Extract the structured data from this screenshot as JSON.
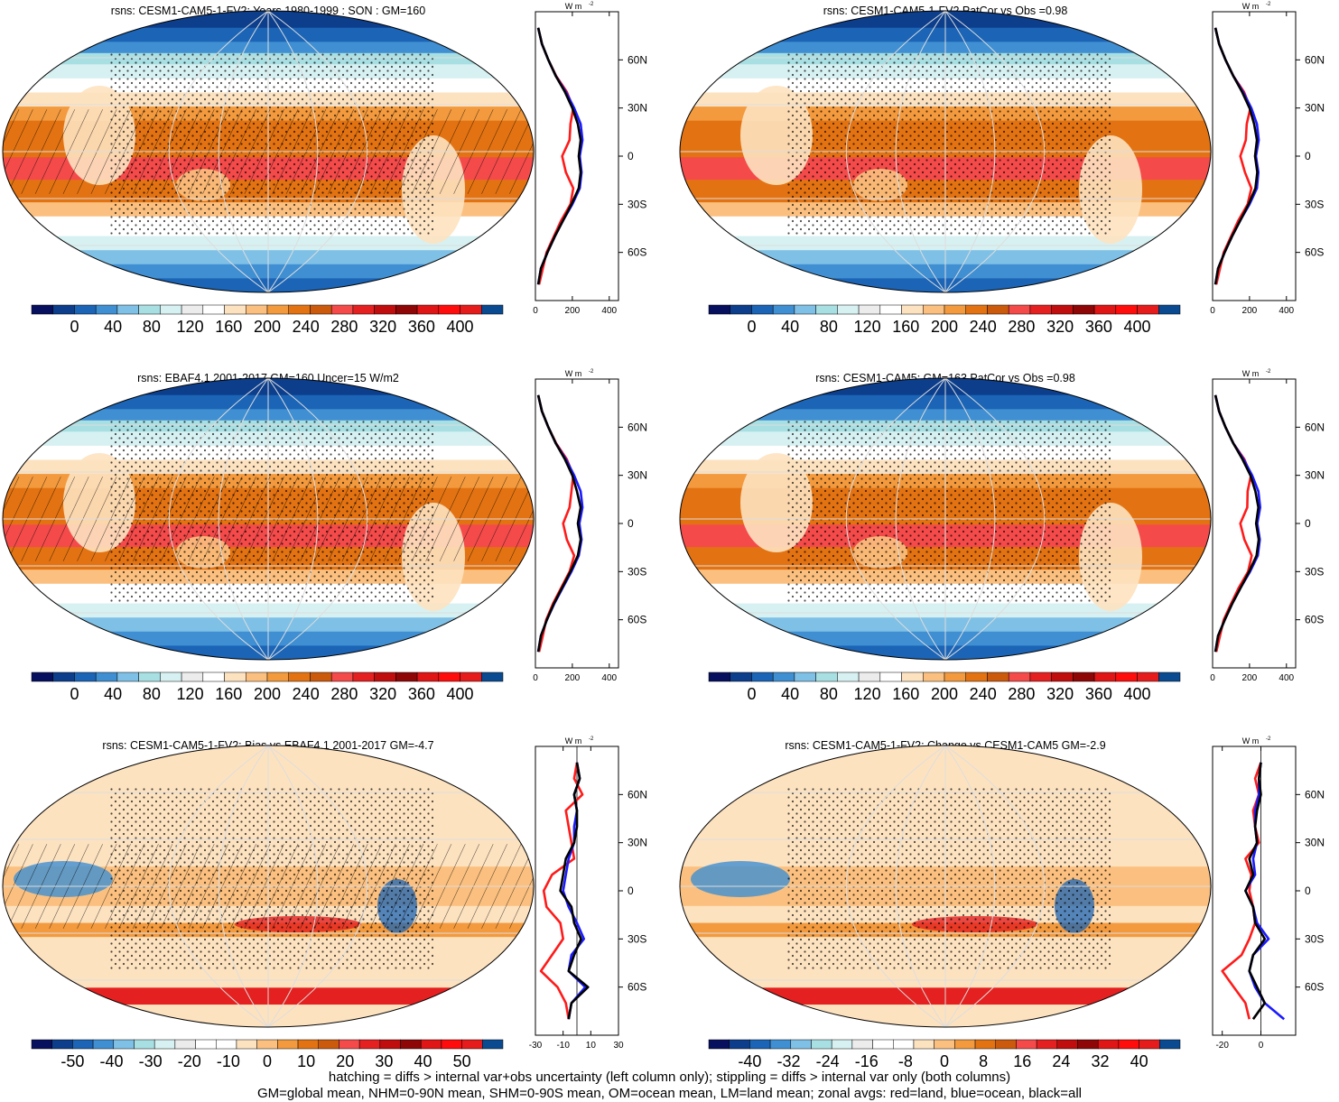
{
  "figure": {
    "footer_line1": "hatching = diffs > internal var+obs uncertainty (left column only); stippling = diffs > internal var only (both columns)",
    "footer_line2": "GM=global mean, NHM=0-90N mean, SHM=0-90S mean, OM=ocean mean, LM=land mean; zonal avgs: red=land, blue=ocean, black=all"
  },
  "colors": {
    "land": "#ff1a1a",
    "ocean": "#1a1aff",
    "all": "#000000",
    "abs_palette": [
      "#07105e",
      "#0c3e8c",
      "#1b64b6",
      "#3f8fd2",
      "#7fc0e6",
      "#a8dfe3",
      "#d7f1f2",
      "#ececec",
      "#ffffff",
      "#fde2c0",
      "#fbc07f",
      "#f39a3e",
      "#e37312",
      "#cc5a0c",
      "#f44a4a",
      "#e42020",
      "#c00d0d",
      "#8e0606",
      "#e01515",
      "#ff0d0d",
      "#e61c1c",
      "#0a4a90"
    ],
    "diff_palette": [
      "#07105e",
      "#0c3e8c",
      "#1b64b6",
      "#3f8fd2",
      "#7fc0e6",
      "#a8dfe3",
      "#d7f1f2",
      "#ececec",
      "#ffffff",
      "#ffffff",
      "#fde2c0",
      "#fbc07f",
      "#f39a3e",
      "#e37312",
      "#cc5a0c",
      "#f44a4a",
      "#e42020",
      "#c00d0d",
      "#8e0606",
      "#e01515",
      "#ff0d0d",
      "#e61c1c",
      "#0a4a90"
    ]
  },
  "chart_data": [
    {
      "type": "heatmap",
      "panel": "top-left",
      "title": "rsns: CESM1-CAM5-1-FV2: Years 1980-1999 : SON : GM=160",
      "field": "abs",
      "hatching": true,
      "colorbar_labels": [
        "0",
        "40",
        "80",
        "120",
        "160",
        "200",
        "240",
        "280",
        "320",
        "360",
        "400"
      ],
      "zonal": {
        "unit_label": "W m",
        "unit_sup": "-2",
        "lat_labels": [
          "60N",
          "30N",
          "0",
          "30S",
          "60S"
        ],
        "xlim": [
          0,
          450
        ],
        "xticks": [
          "0",
          "200",
          "400"
        ],
        "zero_line": false,
        "lat": [
          80,
          70,
          60,
          50,
          40,
          30,
          20,
          10,
          0,
          -10,
          -20,
          -30,
          -40,
          -50,
          -60,
          -70,
          -80
        ],
        "all": [
          15,
          35,
          70,
          110,
          160,
          200,
          230,
          245,
          235,
          245,
          235,
          195,
          150,
          105,
          65,
          30,
          15
        ],
        "ocean": [
          15,
          35,
          70,
          110,
          165,
          210,
          245,
          255,
          240,
          250,
          240,
          200,
          150,
          105,
          65,
          30,
          15
        ],
        "land": [
          15,
          35,
          70,
          112,
          170,
          205,
          190,
          185,
          145,
          165,
          205,
          190,
          140,
          100,
          60,
          40,
          20
        ]
      }
    },
    {
      "type": "heatmap",
      "panel": "top-right",
      "title": "rsns: CESM1-CAM5-1-FV2 PatCor vs Obs =0.98",
      "field": "abs",
      "hatching": false,
      "colorbar_labels": [
        "0",
        "40",
        "80",
        "120",
        "160",
        "200",
        "240",
        "280",
        "320",
        "360",
        "400"
      ],
      "zonal": {
        "unit_label": "W m",
        "unit_sup": "-2",
        "lat_labels": [
          "60N",
          "30N",
          "0",
          "30S",
          "60S"
        ],
        "xlim": [
          0,
          450
        ],
        "xticks": [
          "0",
          "200",
          "400"
        ],
        "zero_line": false,
        "lat": [
          80,
          70,
          60,
          50,
          40,
          30,
          20,
          10,
          0,
          -10,
          -20,
          -30,
          -40,
          -50,
          -60,
          -70,
          -80
        ],
        "all": [
          15,
          35,
          70,
          112,
          160,
          200,
          225,
          240,
          230,
          242,
          232,
          195,
          150,
          105,
          65,
          30,
          15
        ],
        "ocean": [
          15,
          35,
          70,
          112,
          165,
          210,
          240,
          250,
          235,
          248,
          240,
          200,
          150,
          105,
          65,
          30,
          15
        ],
        "land": [
          15,
          35,
          70,
          112,
          170,
          205,
          185,
          180,
          150,
          175,
          210,
          190,
          140,
          100,
          60,
          40,
          20
        ]
      }
    },
    {
      "type": "heatmap",
      "panel": "middle-left",
      "title": "rsns: EBAF4.1 2001-2017 GM=160 Uncer=15 W/m2",
      "field": "abs",
      "hatching": true,
      "colorbar_labels": [
        "0",
        "40",
        "80",
        "120",
        "160",
        "200",
        "240",
        "280",
        "320",
        "360",
        "400"
      ],
      "zonal": {
        "unit_label": "W m",
        "unit_sup": "-2",
        "lat_labels": [
          "60N",
          "30N",
          "0",
          "30S",
          "60S"
        ],
        "xlim": [
          0,
          450
        ],
        "xticks": [
          "0",
          "200",
          "400"
        ],
        "zero_line": false,
        "lat": [
          80,
          70,
          60,
          50,
          40,
          30,
          20,
          10,
          0,
          -10,
          -20,
          -30,
          -40,
          -50,
          -60,
          -70,
          -80
        ],
        "all": [
          15,
          35,
          70,
          110,
          160,
          200,
          225,
          245,
          230,
          245,
          230,
          190,
          145,
          100,
          62,
          30,
          15
        ],
        "ocean": [
          15,
          35,
          70,
          110,
          165,
          210,
          245,
          255,
          238,
          250,
          235,
          195,
          148,
          102,
          62,
          30,
          15
        ],
        "land": [
          15,
          35,
          70,
          112,
          170,
          205,
          195,
          185,
          150,
          170,
          210,
          185,
          140,
          95,
          58,
          40,
          20
        ]
      }
    },
    {
      "type": "heatmap",
      "panel": "middle-right",
      "title": "rsns: CESM1-CAM5: GM=163 PatCor vs Obs =0.98",
      "field": "abs",
      "hatching": false,
      "colorbar_labels": [
        "0",
        "40",
        "80",
        "120",
        "160",
        "200",
        "240",
        "280",
        "320",
        "360",
        "400"
      ],
      "zonal": {
        "unit_label": "W m",
        "unit_sup": "-2",
        "lat_labels": [
          "60N",
          "30N",
          "0",
          "30S",
          "60S"
        ],
        "xlim": [
          0,
          450
        ],
        "xticks": [
          "0",
          "200",
          "400"
        ],
        "zero_line": false,
        "lat": [
          80,
          70,
          60,
          50,
          40,
          30,
          20,
          10,
          0,
          -10,
          -20,
          -30,
          -40,
          -50,
          -60,
          -70,
          -80
        ],
        "all": [
          15,
          35,
          70,
          112,
          162,
          205,
          232,
          248,
          236,
          250,
          238,
          198,
          152,
          106,
          66,
          30,
          15
        ],
        "ocean": [
          15,
          35,
          70,
          112,
          168,
          214,
          248,
          258,
          242,
          256,
          245,
          203,
          152,
          106,
          66,
          30,
          15
        ],
        "land": [
          15,
          35,
          70,
          112,
          172,
          208,
          190,
          188,
          150,
          172,
          212,
          192,
          142,
          100,
          60,
          40,
          20
        ]
      }
    },
    {
      "type": "heatmap",
      "panel": "bottom-left",
      "title": "rsns: CESM1-CAM5-1-FV2: Bias vs EBAF4.1 2001-2017  GM=-4.7",
      "field": "diff",
      "hatching": true,
      "colorbar_labels": [
        "-50",
        "-40",
        "-30",
        "-20",
        "-10",
        "0",
        "10",
        "20",
        "30",
        "40",
        "50"
      ],
      "zonal": {
        "unit_label": "W m",
        "unit_sup": "-2",
        "lat_labels": [
          "60N",
          "30N",
          "0",
          "30S",
          "60S"
        ],
        "xlim": [
          -30,
          30
        ],
        "xticks": [
          "-30",
          "-10",
          "10",
          "30"
        ],
        "zero_line": true,
        "lat": [
          80,
          70,
          60,
          50,
          40,
          30,
          20,
          10,
          0,
          -10,
          -20,
          -30,
          -40,
          -50,
          -60,
          -70,
          -80
        ],
        "all": [
          0,
          2,
          -2,
          0,
          0,
          -2,
          -8,
          -10,
          -12,
          -4,
          -2,
          3,
          -2,
          -6,
          8,
          -4,
          -6
        ],
        "ocean": [
          0,
          2,
          -2,
          0,
          -2,
          -2,
          -6,
          -8,
          -10,
          -6,
          0,
          5,
          -4,
          -6,
          6,
          -4,
          -6
        ],
        "land": [
          0,
          -2,
          4,
          -8,
          -6,
          -4,
          -2,
          -18,
          -24,
          -22,
          -12,
          -10,
          -18,
          -26,
          -14,
          -8,
          -6
        ]
      }
    },
    {
      "type": "heatmap",
      "panel": "bottom-right",
      "title": "rsns: CESM1-CAM5-1-FV2: Change vs CESM1-CAM5 GM=-2.9",
      "field": "diff",
      "hatching": false,
      "colorbar_labels": [
        "-40",
        "-32",
        "-24",
        "-16",
        "-8",
        "0",
        "8",
        "16",
        "24",
        "32",
        "40"
      ],
      "zonal": {
        "unit_label": "W m",
        "unit_sup": "-2",
        "lat_labels": [
          "60N",
          "30N",
          "0",
          "30S",
          "60S"
        ],
        "xlim": [
          -25,
          18
        ],
        "xticks": [
          "-20",
          "0"
        ],
        "zero_line": true,
        "lat": [
          80,
          70,
          60,
          50,
          40,
          30,
          20,
          10,
          0,
          -10,
          -20,
          -30,
          -40,
          -50,
          -60,
          -70,
          -80
        ],
        "all": [
          0,
          -1,
          0,
          -2,
          -3,
          -2,
          -6,
          -4,
          -8,
          -4,
          -3,
          2,
          -4,
          -6,
          -2,
          2,
          -4
        ],
        "ocean": [
          0,
          -1,
          -1,
          -3,
          -3,
          -2,
          -4,
          -3,
          -8,
          -4,
          -2,
          4,
          -4,
          -6,
          -3,
          2,
          12
        ],
        "land": [
          0,
          -3,
          -1,
          -4,
          -3,
          -1,
          -8,
          -5,
          -6,
          -4,
          -3,
          -6,
          -10,
          -20,
          -14,
          -8,
          -6
        ]
      }
    }
  ]
}
